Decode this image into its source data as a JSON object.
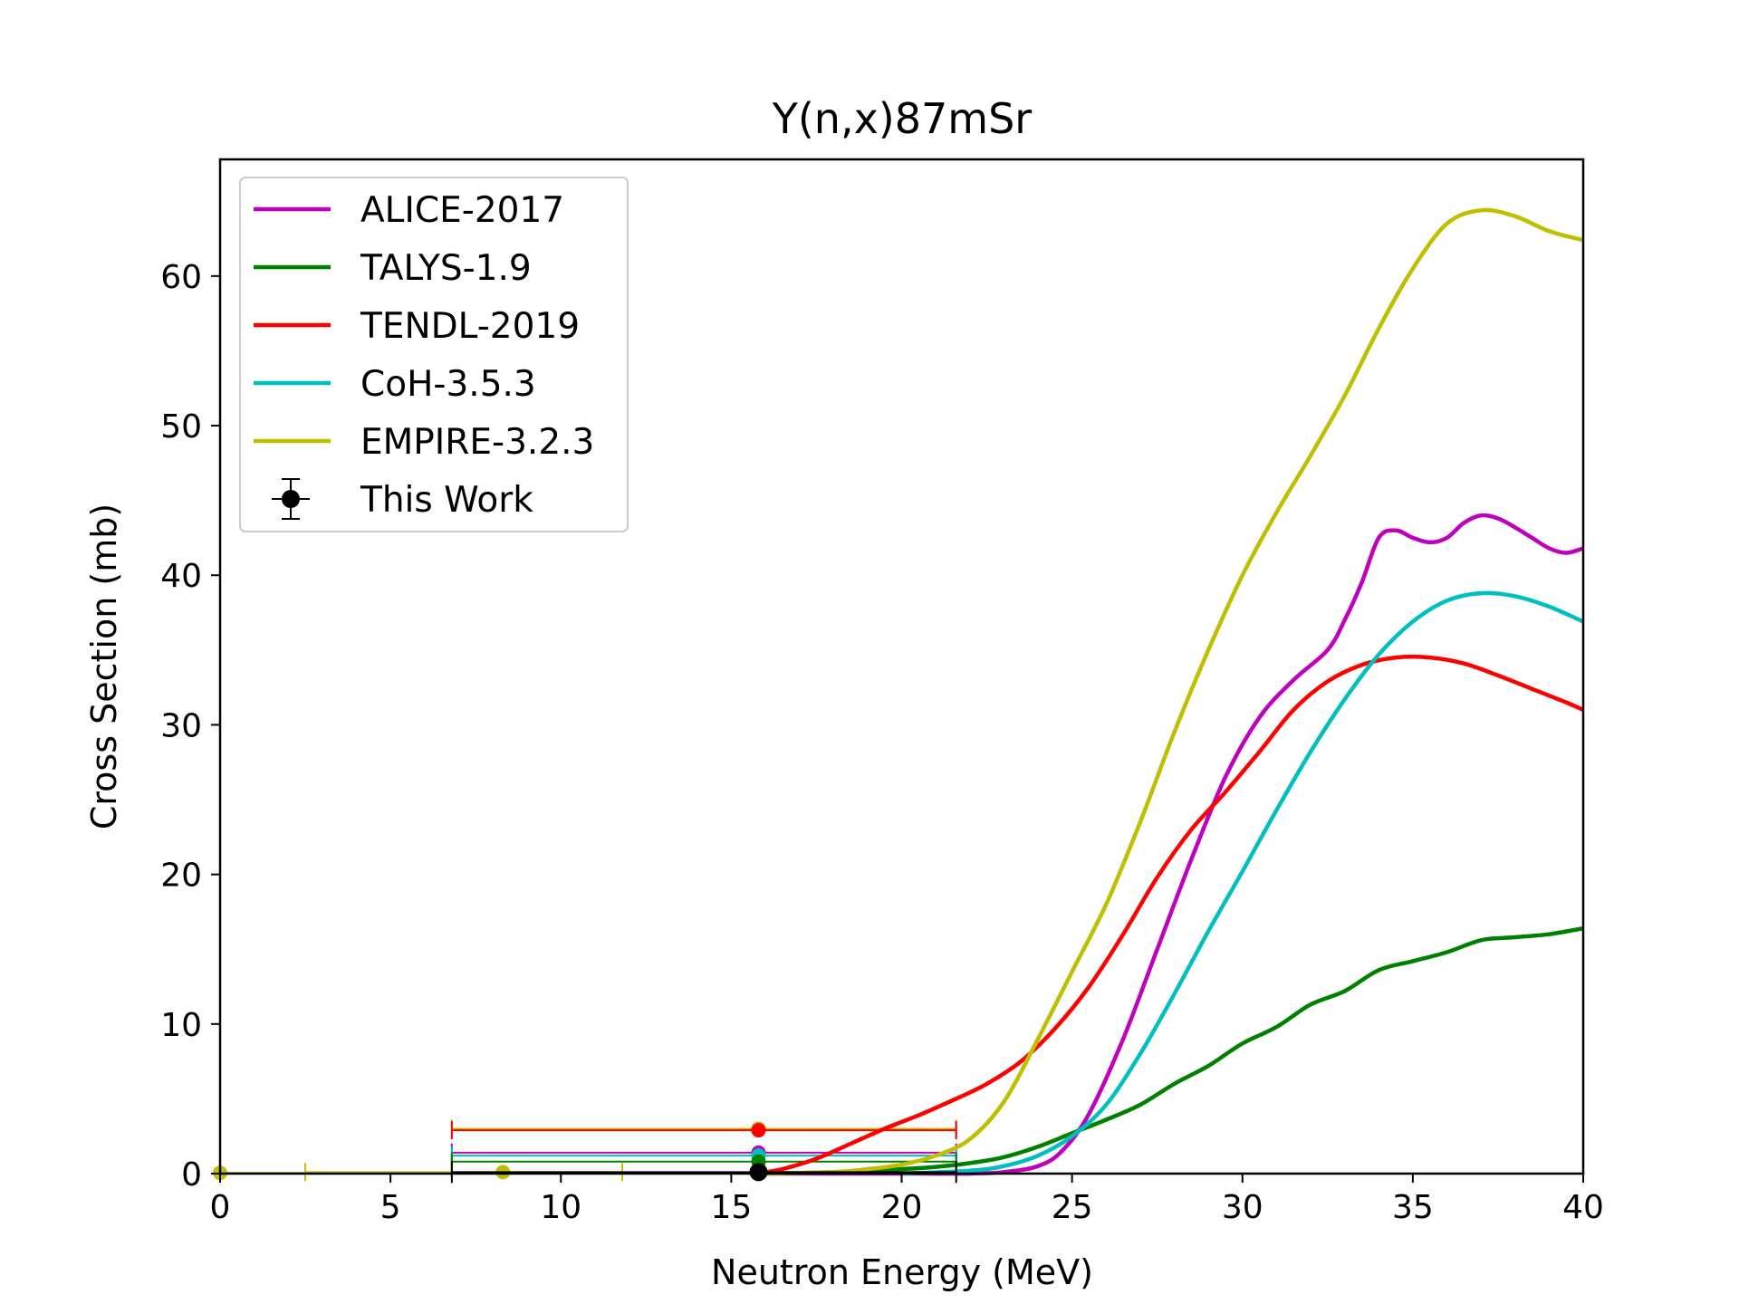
{
  "chart_data": {
    "type": "line",
    "title": "Y(n,x)87mSr",
    "xlabel": "Neutron Energy (MeV)",
    "ylabel": "Cross Section (mb)",
    "xlim": [
      0,
      40
    ],
    "ylim": [
      0,
      67.8
    ],
    "xticks": [
      0,
      5,
      10,
      15,
      20,
      25,
      30,
      35,
      40
    ],
    "yticks": [
      0,
      10,
      20,
      30,
      40,
      50,
      60
    ],
    "grid": false,
    "legend_position": "top-left",
    "series": [
      {
        "name": "ALICE-2017",
        "color": "#bf00bf",
        "x": [
          16,
          20,
          22,
          23,
          24,
          24.7,
          25.5,
          26.5,
          27.5,
          28.5,
          29.5,
          30.5,
          31.5,
          32.5,
          33,
          33.5,
          34,
          34.5,
          35,
          35.5,
          36,
          36.5,
          37,
          37.5,
          38,
          38.5,
          39,
          39.5,
          40
        ],
        "y": [
          0,
          0,
          0,
          0.1,
          0.5,
          1.5,
          4,
          9,
          15,
          21,
          26.5,
          30.5,
          33,
          35,
          37,
          39.5,
          42.5,
          43,
          42.5,
          42.2,
          42.5,
          43.5,
          44,
          43.8,
          43.2,
          42.5,
          41.8,
          41.5,
          41.8
        ]
      },
      {
        "name": "TALYS-1.9",
        "color": "#008000",
        "x": [
          16,
          18,
          20,
          21,
          22,
          23,
          24,
          25,
          26,
          27,
          28,
          29,
          30,
          31,
          32,
          33,
          34,
          35,
          36,
          37,
          38,
          39,
          40
        ],
        "y": [
          0,
          0.1,
          0.3,
          0.45,
          0.7,
          1.1,
          1.8,
          2.7,
          3.6,
          4.6,
          6,
          7.2,
          8.7,
          9.8,
          11.3,
          12.2,
          13.6,
          14.2,
          14.8,
          15.6,
          15.8,
          16,
          16.4
        ]
      },
      {
        "name": "TENDL-2019",
        "color": "#ff0000",
        "x": [
          15.7,
          16.5,
          17.5,
          18.5,
          19.5,
          20.5,
          21.5,
          22.5,
          23.5,
          24.5,
          25.5,
          26.5,
          27.5,
          28.5,
          29.5,
          30.5,
          31.5,
          32.5,
          33.5,
          34.5,
          35.5,
          36.5,
          37.5,
          38.5,
          39.5,
          40
        ],
        "y": [
          0,
          0.3,
          1,
          2,
          3,
          3.9,
          4.9,
          6,
          7.5,
          9.7,
          12.5,
          16,
          19.8,
          23,
          25.5,
          28.2,
          31,
          32.9,
          34,
          34.5,
          34.5,
          34.1,
          33.3,
          32.4,
          31.5,
          31
        ]
      },
      {
        "name": "CoH-3.5.3",
        "color": "#00bfbf",
        "x": [
          20,
          22,
          23,
          24,
          25,
          26,
          27,
          28,
          29,
          30,
          31,
          32,
          33,
          34,
          35,
          36,
          37,
          38,
          39,
          40
        ],
        "y": [
          0,
          0.2,
          0.5,
          1.2,
          2.5,
          4.6,
          8,
          12,
          16.2,
          20.2,
          24.3,
          28.2,
          31.7,
          34.7,
          36.9,
          38.3,
          38.8,
          38.6,
          37.9,
          36.9
        ]
      },
      {
        "name": "EMPIRE-3.2.3",
        "color": "#bfbf00",
        "x": [
          16,
          18,
          19,
          20,
          21,
          22,
          23,
          24,
          25,
          26,
          27,
          28,
          29,
          30,
          31,
          32,
          33,
          34,
          35,
          36,
          37,
          38,
          39,
          40
        ],
        "y": [
          0,
          0.1,
          0.3,
          0.6,
          1.2,
          2.3,
          4.8,
          9,
          13.5,
          18,
          23.5,
          29.5,
          35,
          40,
          44.2,
          48,
          52,
          56.5,
          60.5,
          63.5,
          64.4,
          64,
          63,
          62.4
        ]
      }
    ],
    "measurement": {
      "name": "This Work",
      "color": "#000000",
      "x": 15.8,
      "y": 0.1,
      "xerr": [
        6.8,
        21.6
      ],
      "yerr": 0.1
    },
    "overlay_points": [
      {
        "color": "#bfbf00",
        "x": 15.8,
        "y": 3.0,
        "xerr": [
          6.8,
          21.6
        ]
      },
      {
        "color": "#ff0000",
        "x": 15.8,
        "y": 2.9,
        "xerr": [
          6.8,
          21.6
        ]
      },
      {
        "color": "#bf00bf",
        "x": 15.8,
        "y": 1.4,
        "xerr": [
          6.8,
          21.6
        ]
      },
      {
        "color": "#00bfbf",
        "x": 15.8,
        "y": 1.2,
        "xerr": [
          6.8,
          21.6
        ]
      },
      {
        "color": "#008000",
        "x": 15.8,
        "y": 0.8,
        "xerr": [
          6.8,
          21.6
        ]
      },
      {
        "color": "#bfbf00",
        "x": 8.3,
        "y": 0.1,
        "xerr": [
          2.5,
          11.8
        ]
      },
      {
        "color": "#bfbf00",
        "x": 0,
        "y": 0.05,
        "xerr": [
          0,
          6.8
        ]
      }
    ]
  }
}
